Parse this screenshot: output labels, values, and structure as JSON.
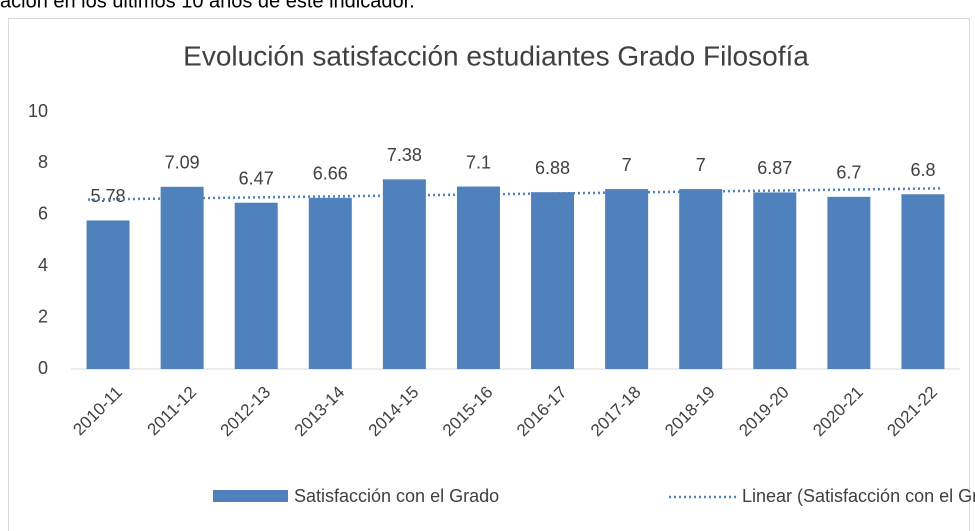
{
  "header_text": "ación en los últimos 10 años de este indicador.",
  "chart_data": {
    "type": "bar",
    "title": "Evolución satisfacción estudiantes Grado Filosofía",
    "categories": [
      "2010-11",
      "2011-12",
      "2012-13",
      "2013-14",
      "2014-15",
      "2015-16",
      "2016-17",
      "2017-18",
      "2018-19",
      "2019-20",
      "2020-21",
      "2021-22"
    ],
    "series": [
      {
        "name": "Satisfacción con el Grado",
        "color": "#4f81bd",
        "values": [
          5.78,
          7.09,
          6.47,
          6.66,
          7.38,
          7.1,
          6.88,
          7,
          7,
          6.87,
          6.7,
          6.8
        ]
      }
    ],
    "trendline": {
      "name": "Linear (Satisfacción con el Grado)",
      "color": "#4f81bd"
    },
    "ylim": [
      0,
      10
    ],
    "yticks": [
      0,
      2,
      4,
      6,
      8,
      10
    ],
    "grid": false,
    "legend": "bottom"
  }
}
